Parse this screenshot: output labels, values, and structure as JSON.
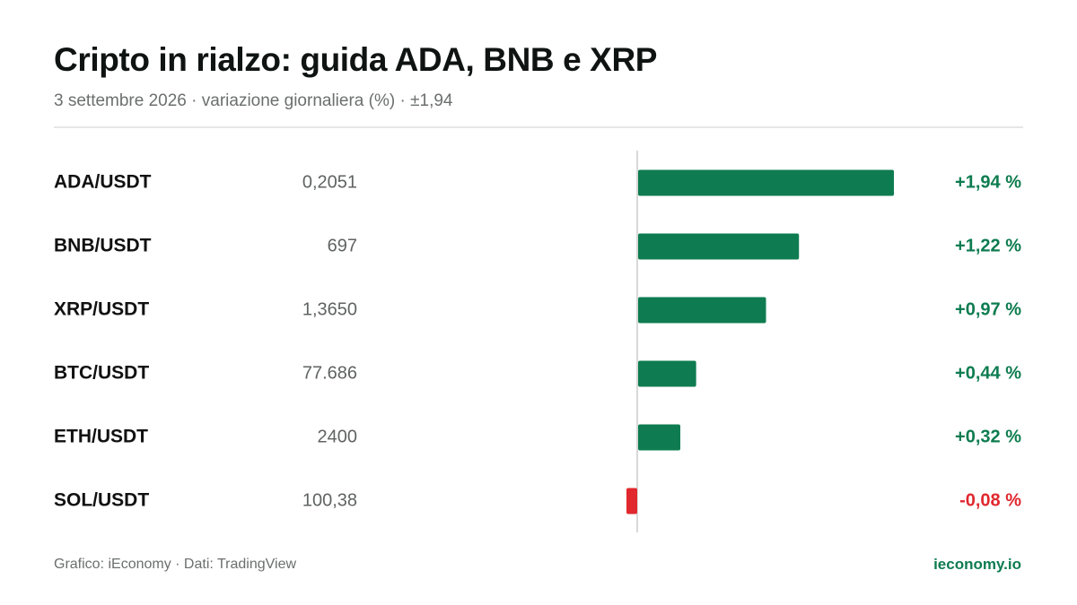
{
  "header": {
    "title": "Cripto in rialzo: guida ADA, BNB e XRP",
    "subtitle": "3 settembre 2026 · variazione giornaliera (%) · ±1,94"
  },
  "footer": {
    "source": "Grafico: iEconomy · Dati: TradingView",
    "brand": "ieconomy.io"
  },
  "colors": {
    "positive": "#0e7c50",
    "negative": "#e0282e",
    "axis": "#d9d9d9"
  },
  "chart_data": {
    "type": "bar",
    "orientation": "horizontal",
    "categories": [
      "ADA/USDT",
      "BNB/USDT",
      "XRP/USDT",
      "BTC/USDT",
      "ETH/USDT",
      "SOL/USDT"
    ],
    "prices": [
      "0,2051",
      "697",
      "1,3650",
      "77.686",
      "2400",
      "100,38"
    ],
    "values": [
      1.94,
      1.22,
      0.97,
      0.44,
      0.32,
      -0.08
    ],
    "value_labels": [
      "+1,94 %",
      "+1,22 %",
      "+0,97 %",
      "+0,44 %",
      "+0,32 %",
      "-0,08 %"
    ],
    "xlim": [
      -0.08,
      1.94
    ],
    "grid": false,
    "legend": "none"
  }
}
